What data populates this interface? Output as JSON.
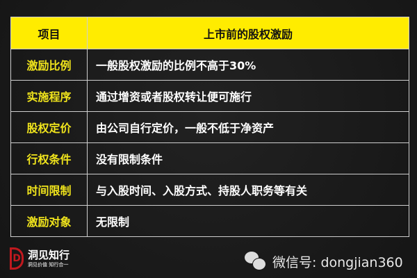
{
  "table": {
    "headers": [
      "项目",
      "上市前的股权激励"
    ],
    "rows": [
      {
        "item": "激励比例",
        "value": "一般股权激励的比例不高于30%"
      },
      {
        "item": "实施程序",
        "value": "通过增资或者股权转让便可施行"
      },
      {
        "item": "股权定价",
        "value": "由公司自行定价，一般不低于净资产"
      },
      {
        "item": "行权条件",
        "value": "没有限制条件"
      },
      {
        "item": "时间限制",
        "value": "与入股时间、入股方式、持股人职务等有关"
      },
      {
        "item": "激励对象",
        "value": "无限制"
      }
    ]
  },
  "footer": {
    "brand": "洞见知行",
    "slogan": "洞见价值  知行合一",
    "wechat": "微信号: dongjian360",
    "wechat_icon": "wechat-icon"
  },
  "colors": {
    "header_bg": "#ffec00",
    "item_text": "#f0e41c",
    "logo_red": "#c0191e"
  }
}
